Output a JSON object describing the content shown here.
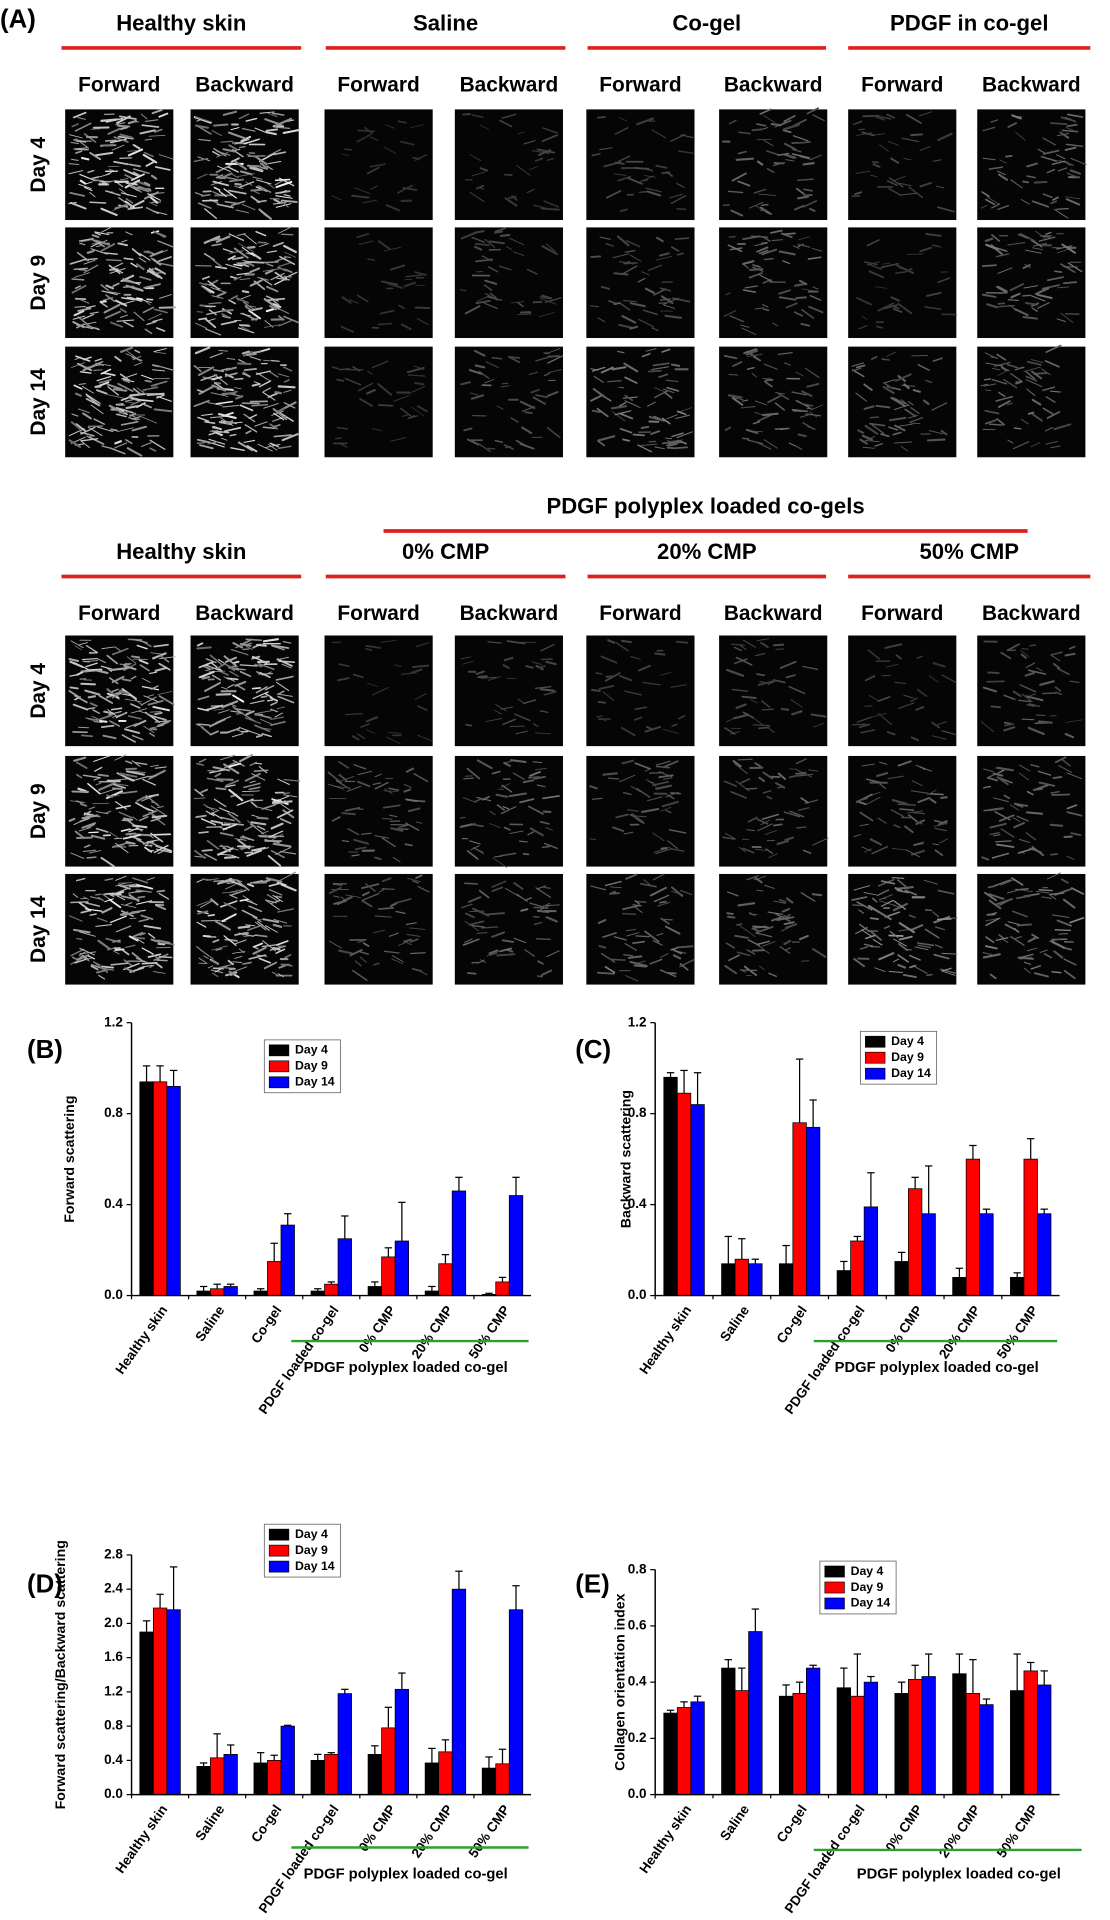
{
  "panel_a": {
    "label": "(A)",
    "top": {
      "groups": [
        "Healthy skin",
        "Saline",
        "Co-gel",
        "PDGF in co-gel"
      ],
      "columns": [
        "Forward",
        "Backward",
        "Forward",
        "Backward",
        "Forward",
        "Backward",
        "Forward",
        "Backward"
      ],
      "rows": [
        "Day 4",
        "Day 9",
        "Day 14"
      ]
    },
    "bottom": {
      "super_header": "PDGF polyplex loaded co-gels",
      "groups": [
        "Healthy skin",
        "0% CMP",
        "20% CMP",
        "50% CMP"
      ],
      "columns": [
        "Forward",
        "Backward",
        "Forward",
        "Backward",
        "Forward",
        "Backward",
        "Forward",
        "Backward"
      ],
      "rows": [
        "Day 4",
        "Day 9",
        "Day 14"
      ]
    }
  },
  "chart_data": [
    {
      "type": "bar",
      "panel_label": "(B)",
      "y_label": "Forward scattering",
      "categories": [
        "Healthy skin",
        "Saline",
        "Co-gel",
        "PDGF loaded co-gel",
        "0% CMP",
        "20% CMP",
        "50% CMP"
      ],
      "group_label": "PDGF polyplex loaded co-gel",
      "ylim": [
        0,
        1.2
      ],
      "yticks": [
        {
          "value": 0,
          "label": "0.0"
        },
        0.4,
        0.8,
        1.2
      ],
      "series": [
        {
          "name": "Day 4",
          "color": "#000000",
          "values": [
            0.94,
            0.02,
            0.02,
            0.02,
            0.04,
            0.02,
            0.005
          ],
          "errors": [
            0.07,
            0.02,
            0.01,
            0.01,
            0.02,
            0.02,
            0.005
          ]
        },
        {
          "name": "Day 9",
          "color": "#ff0000",
          "values": [
            0.94,
            0.03,
            0.15,
            0.05,
            0.17,
            0.14,
            0.06
          ],
          "errors": [
            0.07,
            0.02,
            0.08,
            0.01,
            0.04,
            0.04,
            0.02
          ]
        },
        {
          "name": "Day 14",
          "color": "#0000ff",
          "values": [
            0.92,
            0.04,
            0.31,
            0.25,
            0.24,
            0.46,
            0.44
          ],
          "errors": [
            0.07,
            0.01,
            0.05,
            0.1,
            0.17,
            0.06,
            0.08
          ]
        }
      ]
    },
    {
      "type": "bar",
      "panel_label": "(C)",
      "y_label": "Backward scattering",
      "categories": [
        "Healthy skin",
        "Saline",
        "Co-gel",
        "PDGF loaded co-gel",
        "0% CMP",
        "20% CMP",
        "50% CMP"
      ],
      "group_label": "PDGF polyplex loaded co-gel",
      "ylim": [
        0,
        1.2
      ],
      "yticks": [
        {
          "value": 0,
          "label": "0.0"
        },
        0.4,
        0.8,
        1.2
      ],
      "series": [
        {
          "name": "Day 4",
          "color": "#000000",
          "values": [
            0.96,
            0.14,
            0.14,
            0.11,
            0.15,
            0.08,
            0.08
          ],
          "errors": [
            0.02,
            0.12,
            0.08,
            0.04,
            0.04,
            0.04,
            0.02
          ]
        },
        {
          "name": "Day 9",
          "color": "#ff0000",
          "values": [
            0.89,
            0.16,
            0.76,
            0.24,
            0.47,
            0.6,
            0.6
          ],
          "errors": [
            0.1,
            0.09,
            0.28,
            0.02,
            0.05,
            0.06,
            0.09
          ]
        },
        {
          "name": "Day 14",
          "color": "#0000ff",
          "values": [
            0.84,
            0.14,
            0.74,
            0.39,
            0.36,
            0.36,
            0.36
          ],
          "errors": [
            0.14,
            0.02,
            0.12,
            0.15,
            0.21,
            0.02,
            0.02
          ]
        }
      ]
    },
    {
      "type": "bar",
      "panel_label": "(D)",
      "y_label": "Forward scattering/Backward scattering",
      "categories": [
        "Healthy skin",
        "Saline",
        "Co-gel",
        "PDGF loaded co-gel",
        "0% CMP",
        "20% CMP",
        "50% CMP"
      ],
      "group_label": "PDGF polyplex loaded co-gel",
      "ylim": [
        0,
        2.8
      ],
      "yticks": [
        {
          "value": 0,
          "label": "0.0"
        },
        0.4,
        0.8,
        1.2,
        1.6,
        {
          "value": 2,
          "label": "2.0"
        },
        2.4,
        2.8
      ],
      "series": [
        {
          "name": "Day 4",
          "color": "#000000",
          "values": [
            1.9,
            0.33,
            0.37,
            0.4,
            0.47,
            0.37,
            0.31
          ],
          "errors": [
            0.13,
            0.04,
            0.12,
            0.07,
            0.1,
            0.17,
            0.13
          ]
        },
        {
          "name": "Day 9",
          "color": "#ff0000",
          "values": [
            2.18,
            0.43,
            0.4,
            0.47,
            0.78,
            0.5,
            0.36
          ],
          "errors": [
            0.16,
            0.28,
            0.06,
            0.02,
            0.24,
            0.14,
            0.17
          ]
        },
        {
          "name": "Day 14",
          "color": "#0000ff",
          "values": [
            2.16,
            0.47,
            0.8,
            1.18,
            1.23,
            2.4,
            2.16
          ],
          "errors": [
            0.5,
            0.11,
            0.01,
            0.05,
            0.19,
            0.21,
            0.28
          ]
        }
      ]
    },
    {
      "type": "bar",
      "panel_label": "(E)",
      "y_label": "Collagen orientation index",
      "categories": [
        "Healthy skin",
        "Saline",
        "Co-gel",
        "PDGF loaded co-gel",
        "0% CMP",
        "20% CMP",
        "50% CMP"
      ],
      "group_label": "PDGF polyplex loaded co-gel",
      "ylim": [
        0,
        0.8
      ],
      "yticks": [
        {
          "value": 0,
          "label": "0.0"
        },
        0.2,
        0.4,
        0.6,
        0.8
      ],
      "series": [
        {
          "name": "Day 4",
          "color": "#000000",
          "values": [
            0.29,
            0.45,
            0.35,
            0.38,
            0.36,
            0.43,
            0.37
          ],
          "errors": [
            0.01,
            0.03,
            0.04,
            0.07,
            0.04,
            0.07,
            0.13
          ]
        },
        {
          "name": "Day 9",
          "color": "#ff0000",
          "values": [
            0.31,
            0.37,
            0.36,
            0.35,
            0.41,
            0.36,
            0.44
          ],
          "errors": [
            0.02,
            0.08,
            0.04,
            0.15,
            0.05,
            0.12,
            0.03
          ]
        },
        {
          "name": "Day 14",
          "color": "#0000ff",
          "values": [
            0.33,
            0.58,
            0.45,
            0.4,
            0.42,
            0.32,
            0.39
          ],
          "errors": [
            0.02,
            0.08,
            0.01,
            0.02,
            0.08,
            0.02,
            0.05
          ]
        }
      ]
    }
  ]
}
